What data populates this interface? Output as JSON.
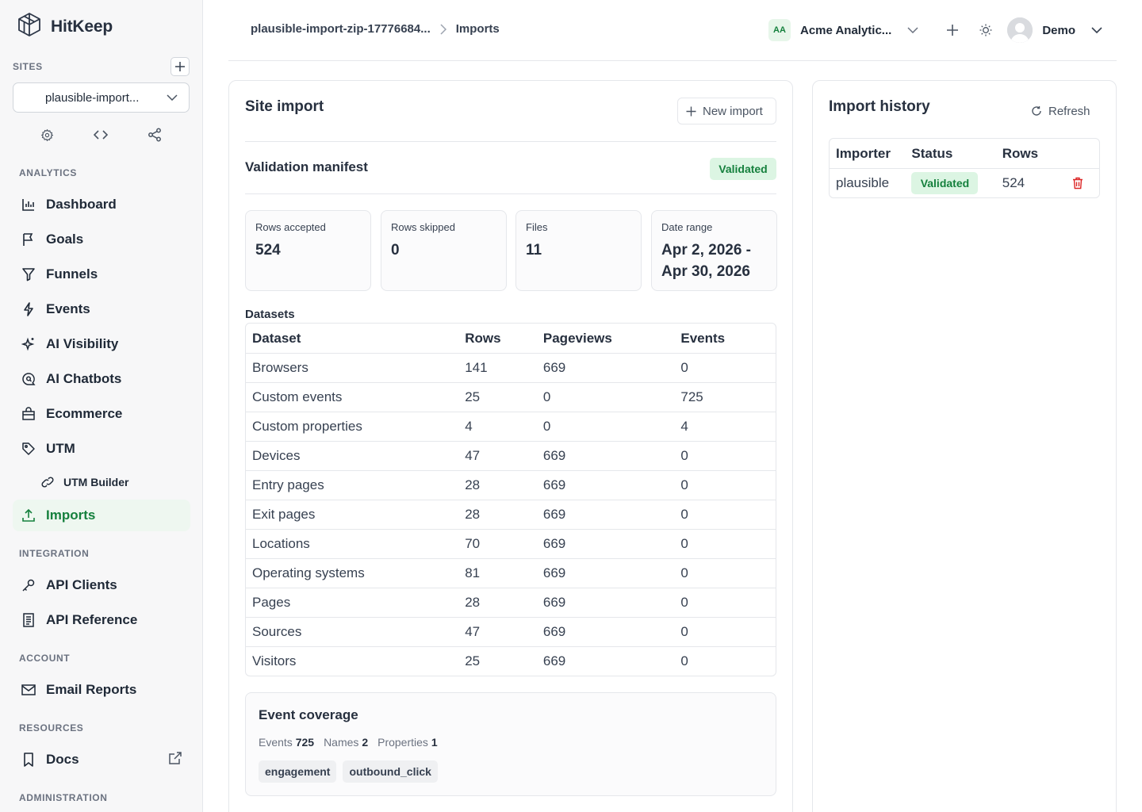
{
  "brand": {
    "name": "HitKeep"
  },
  "sidebar": {
    "sites_label": "SITES",
    "site_selected": "plausible-import...",
    "groups": [
      {
        "label": "ANALYTICS"
      },
      {
        "label": "INTEGRATION"
      },
      {
        "label": "ACCOUNT"
      },
      {
        "label": "RESOURCES"
      },
      {
        "label": "ADMINISTRATION"
      }
    ],
    "items": [
      {
        "label": "Dashboard",
        "icon": "bar-chart-icon"
      },
      {
        "label": "Goals",
        "icon": "flag-icon"
      },
      {
        "label": "Funnels",
        "icon": "funnel-icon"
      },
      {
        "label": "Events",
        "icon": "bolt-icon"
      },
      {
        "label": "AI Visibility",
        "icon": "sparkles-icon"
      },
      {
        "label": "AI Chatbots",
        "icon": "chat-search-icon"
      },
      {
        "label": "Ecommerce",
        "icon": "shopping-bag-icon"
      },
      {
        "label": "UTM",
        "icon": "tag-icon"
      },
      {
        "label": "UTM Builder",
        "icon": "link-icon"
      },
      {
        "label": "Imports",
        "icon": "upload-icon"
      },
      {
        "label": "API Clients",
        "icon": "key-icon"
      },
      {
        "label": "API Reference",
        "icon": "document-icon"
      },
      {
        "label": "Email Reports",
        "icon": "mail-icon"
      },
      {
        "label": "Docs",
        "icon": "bookmark-icon"
      }
    ]
  },
  "header": {
    "breadcrumb": [
      "plausible-import-zip-17776684...",
      "Imports"
    ],
    "org_initials": "AA",
    "org_name": "Acme Analytic...",
    "user_name": "Demo"
  },
  "site_import": {
    "title": "Site import",
    "new_import_label": "New import",
    "manifest_title": "Validation manifest",
    "manifest_status": "Validated",
    "stats": [
      {
        "label": "Rows accepted",
        "value": "524"
      },
      {
        "label": "Rows skipped",
        "value": "0"
      },
      {
        "label": "Files",
        "value": "11"
      },
      {
        "label": "Date range",
        "value": "Apr 2, 2026 - Apr 30, 2026"
      }
    ],
    "datasets_label": "Datasets",
    "dataset_columns": [
      "Dataset",
      "Rows",
      "Pageviews",
      "Events"
    ],
    "datasets": [
      [
        "Browsers",
        "141",
        "669",
        "0"
      ],
      [
        "Custom events",
        "25",
        "0",
        "725"
      ],
      [
        "Custom properties",
        "4",
        "0",
        "4"
      ],
      [
        "Devices",
        "47",
        "669",
        "0"
      ],
      [
        "Entry pages",
        "28",
        "669",
        "0"
      ],
      [
        "Exit pages",
        "28",
        "669",
        "0"
      ],
      [
        "Locations",
        "70",
        "669",
        "0"
      ],
      [
        "Operating systems",
        "81",
        "669",
        "0"
      ],
      [
        "Pages",
        "28",
        "669",
        "0"
      ],
      [
        "Sources",
        "47",
        "669",
        "0"
      ],
      [
        "Visitors",
        "25",
        "669",
        "0"
      ]
    ],
    "coverage": {
      "title": "Event coverage",
      "events_label": "Events",
      "events_value": "725",
      "names_label": "Names",
      "names_value": "2",
      "properties_label": "Properties",
      "properties_value": "1",
      "tags": [
        "engagement",
        "outbound_click"
      ]
    }
  },
  "import_history": {
    "title": "Import history",
    "refresh_label": "Refresh",
    "columns": [
      "Importer",
      "Status",
      "Rows"
    ],
    "rows": [
      {
        "importer": "plausible",
        "status": "Validated",
        "rows": "524"
      }
    ]
  },
  "colors": {
    "accent_green": "#15803d",
    "badge_bg": "#dcf5e3",
    "delete_red": "#dc2626"
  }
}
